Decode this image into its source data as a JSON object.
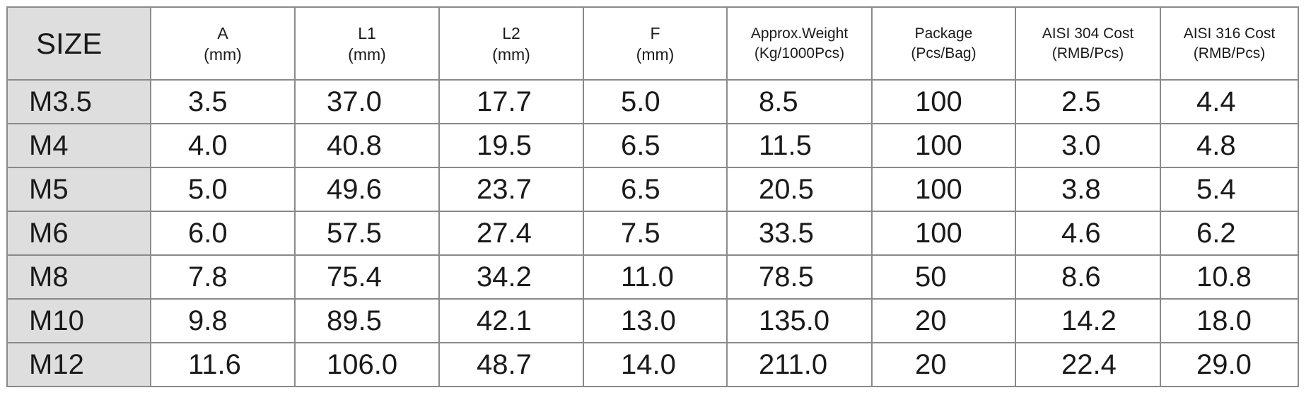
{
  "table": {
    "header": [
      [
        "SIZE"
      ],
      [
        "A",
        "(mm)"
      ],
      [
        "L1",
        "(mm)"
      ],
      [
        "L2",
        "(mm)"
      ],
      [
        "F",
        "(mm)"
      ],
      [
        "Approx.Weight",
        "(Kg/1000Pcs)"
      ],
      [
        "Package",
        "(Pcs/Bag)"
      ],
      [
        "AISI 304 Cost",
        "(RMB/Pcs)"
      ],
      [
        "AISI 316 Cost",
        "(RMB/Pcs)"
      ]
    ],
    "rows": [
      [
        "M3.5",
        "3.5",
        "37.0",
        "17.7",
        "5.0",
        "8.5",
        "100",
        "2.5",
        "4.4"
      ],
      [
        "M4",
        "4.0",
        "40.8",
        "19.5",
        "6.5",
        "11.5",
        "100",
        "3.0",
        "4.8"
      ],
      [
        "M5",
        "5.0",
        "49.6",
        "23.7",
        "6.5",
        "20.5",
        "100",
        "3.8",
        "5.4"
      ],
      [
        "M6",
        "6.0",
        "57.5",
        "27.4",
        "7.5",
        "33.5",
        "100",
        "4.6",
        "6.2"
      ],
      [
        "M8",
        "7.8",
        "75.4",
        "34.2",
        "11.0",
        "78.5",
        "50",
        "8.6",
        "10.8"
      ],
      [
        "M10",
        "9.8",
        "89.5",
        "42.1",
        "13.0",
        "135.0",
        "20",
        "14.2",
        "18.0"
      ],
      [
        "M12",
        "11.6",
        "106.0",
        "48.7",
        "14.0",
        "211.0",
        "20",
        "22.4",
        "29.0"
      ]
    ]
  }
}
